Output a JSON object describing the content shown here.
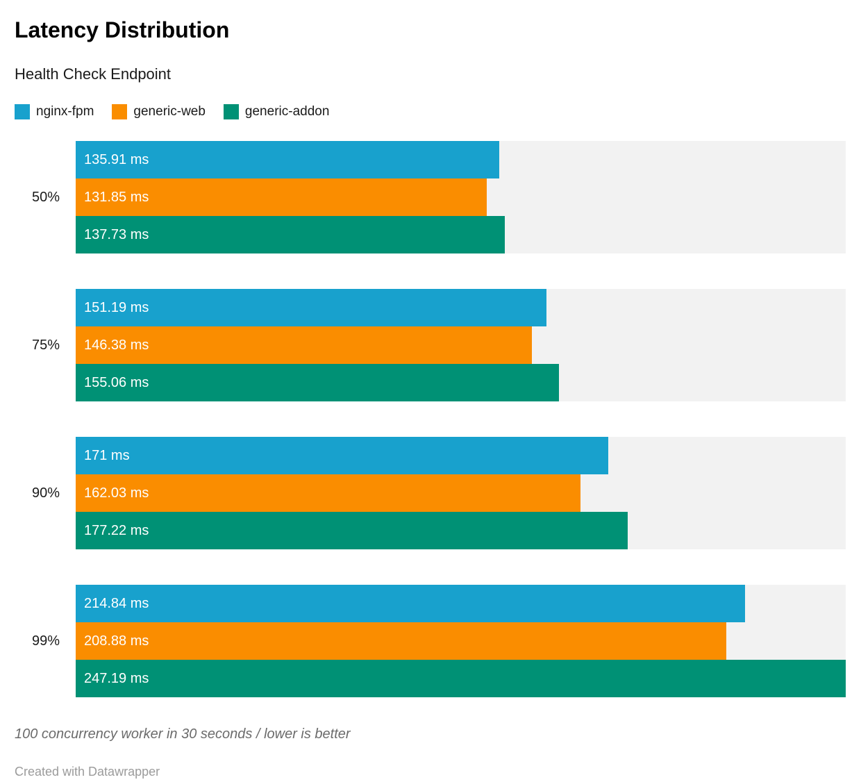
{
  "header": {
    "title": "Latency Distribution",
    "subtitle": "Health Check Endpoint"
  },
  "chart_data": {
    "type": "bar",
    "orientation": "horizontal",
    "title": "Latency Distribution",
    "subtitle": "Health Check Endpoint",
    "categories": [
      "50%",
      "75%",
      "90%",
      "99%"
    ],
    "series": [
      {
        "name": "nginx-fpm",
        "color": "#18a1cd",
        "values": [
          135.91,
          151.19,
          171,
          214.84
        ]
      },
      {
        "name": "generic-web",
        "color": "#fa8d00",
        "values": [
          131.85,
          146.38,
          162.03,
          208.88
        ]
      },
      {
        "name": "generic-addon",
        "color": "#009175",
        "values": [
          137.73,
          155.06,
          177.22,
          247.19
        ]
      }
    ],
    "value_suffix": " ms",
    "xlim": [
      0,
      247.19
    ],
    "grid": false,
    "legend_position": "top",
    "track_color": "#f2f2f2",
    "value_label_color": "#ffffff"
  },
  "footer": {
    "note": "100 concurrency worker in 30 seconds / lower is better",
    "attribution": "Created with Datawrapper"
  }
}
